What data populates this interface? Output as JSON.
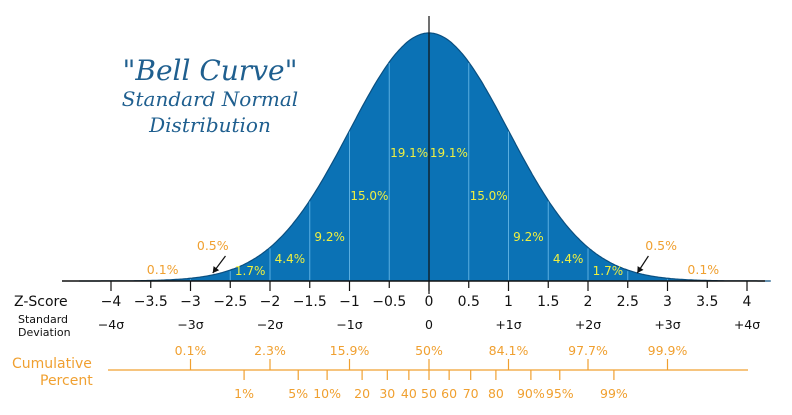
{
  "chart_data": {
    "type": "area",
    "title": "\"Bell Curve\"",
    "subtitle_line1": "Standard Normal",
    "subtitle_line2": "Distribution",
    "x_range": [
      -4.4,
      4.3
    ],
    "region_percents": [
      {
        "from": -3,
        "to": -2.5,
        "label": "0.5%",
        "pointer": true
      },
      {
        "from": -2.5,
        "to": -2,
        "label": "1.7%"
      },
      {
        "from": -2,
        "to": -1.5,
        "label": "4.4%"
      },
      {
        "from": -1.5,
        "to": -1,
        "label": "9.2%"
      },
      {
        "from": -1,
        "to": -0.5,
        "label": "15.0%"
      },
      {
        "from": -0.5,
        "to": 0,
        "label": "19.1%"
      },
      {
        "from": 0,
        "to": 0.5,
        "label": "19.1%"
      },
      {
        "from": 0.5,
        "to": 1,
        "label": "15.0%"
      },
      {
        "from": 1,
        "to": 1.5,
        "label": "9.2%"
      },
      {
        "from": 1.5,
        "to": 2,
        "label": "4.4%"
      },
      {
        "from": 2,
        "to": 2.5,
        "label": "1.7%"
      },
      {
        "from": 2.5,
        "to": 3,
        "label": "0.5%",
        "pointer": true
      }
    ],
    "tail_labels": [
      {
        "side": "left",
        "label": "0.1%"
      },
      {
        "side": "right",
        "label": "0.1%"
      }
    ],
    "zscore_label": "Z-Score",
    "zscore_ticks": [
      {
        "z": -4,
        "label": "−4"
      },
      {
        "z": -3.5,
        "label": "−3.5"
      },
      {
        "z": -3,
        "label": "−3"
      },
      {
        "z": -2.5,
        "label": "−2.5"
      },
      {
        "z": -2,
        "label": "−2"
      },
      {
        "z": -1.5,
        "label": "−1.5"
      },
      {
        "z": -1,
        "label": "−1"
      },
      {
        "z": -0.5,
        "label": "−0.5"
      },
      {
        "z": 0,
        "label": "0"
      },
      {
        "z": 0.5,
        "label": "0.5"
      },
      {
        "z": 1,
        "label": "1"
      },
      {
        "z": 1.5,
        "label": "1.5"
      },
      {
        "z": 2,
        "label": "2"
      },
      {
        "z": 2.5,
        "label": "2.5"
      },
      {
        "z": 3,
        "label": "3"
      },
      {
        "z": 3.5,
        "label": "3.5"
      },
      {
        "z": 4,
        "label": "4"
      }
    ],
    "std_dev_label_line1": "Standard",
    "std_dev_label_line2": "Deviation",
    "std_dev_ticks": [
      {
        "z": -4,
        "label": "−4σ"
      },
      {
        "z": -3,
        "label": "−3σ"
      },
      {
        "z": -2,
        "label": "−2σ"
      },
      {
        "z": -1,
        "label": "−1σ"
      },
      {
        "z": 0,
        "label": "0"
      },
      {
        "z": 1,
        "label": "+1σ"
      },
      {
        "z": 2,
        "label": "+2σ"
      },
      {
        "z": 3,
        "label": "+3σ"
      },
      {
        "z": 4,
        "label": "+4σ"
      }
    ],
    "cumulative_label_line1": "Cumulative",
    "cumulative_label_line2": "Percent",
    "cumulative_upper": [
      {
        "z": -3,
        "label": "0.1%"
      },
      {
        "z": -2,
        "label": "2.3%"
      },
      {
        "z": -1,
        "label": "15.9%"
      },
      {
        "z": 0,
        "label": "50%"
      },
      {
        "z": 1,
        "label": "84.1%"
      },
      {
        "z": 2,
        "label": "97.7%"
      },
      {
        "z": 3,
        "label": "99.9%"
      }
    ],
    "cumulative_lower": [
      {
        "z": -2.326,
        "label": "1%"
      },
      {
        "z": -1.645,
        "label": "5%"
      },
      {
        "z": -1.2816,
        "label": "10%"
      },
      {
        "z": -0.8416,
        "label": "20"
      },
      {
        "z": -0.5244,
        "label": "30"
      },
      {
        "z": -0.2533,
        "label": "40"
      },
      {
        "z": 0,
        "label": "50"
      },
      {
        "z": 0.2533,
        "label": "60"
      },
      {
        "z": 0.5244,
        "label": "70"
      },
      {
        "z": 0.8416,
        "label": "80"
      },
      {
        "z": 1.2816,
        "label": "90%"
      },
      {
        "z": 1.645,
        "label": "95%"
      },
      {
        "z": 2.326,
        "label": "99%"
      }
    ],
    "colors": {
      "fill": "#0b72b5",
      "divider": "#5aaee0",
      "percent_text": "#f0f040",
      "orange": "#f0a030",
      "title": "#1f5f8f",
      "axis": "#111111"
    }
  }
}
